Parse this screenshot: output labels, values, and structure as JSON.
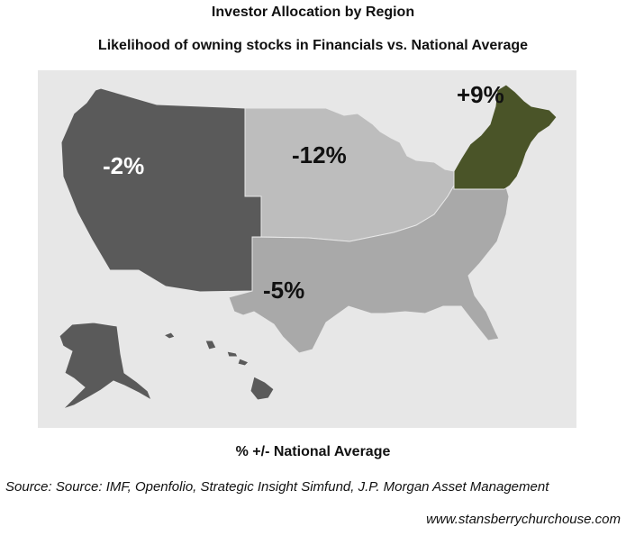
{
  "title": "Investor Allocation by Region",
  "subtitle": "Likelihood of owning stocks in Financials vs. National Average",
  "xlabel": "% +/- National Average",
  "source": "Source: Source: IMF, Openfolio, Strategic Insight Simfund, J.P. Morgan Asset Management",
  "website": "www.stansberrychurchouse.com",
  "colors": {
    "background": "#e7e7e7",
    "west": "#5a5a5a",
    "midwest": "#bdbdbd",
    "south": "#a9a9a9",
    "northeast": "#4a5428",
    "alaska_hawaii": "#5a5a5a"
  },
  "regions": [
    {
      "name": "West",
      "value_label": "-2%",
      "value": -2
    },
    {
      "name": "Midwest",
      "value_label": "-12%",
      "value": -12
    },
    {
      "name": "South",
      "value_label": "-5%",
      "value": -5
    },
    {
      "name": "Northeast",
      "value_label": "+9%",
      "value": 9
    }
  ]
}
